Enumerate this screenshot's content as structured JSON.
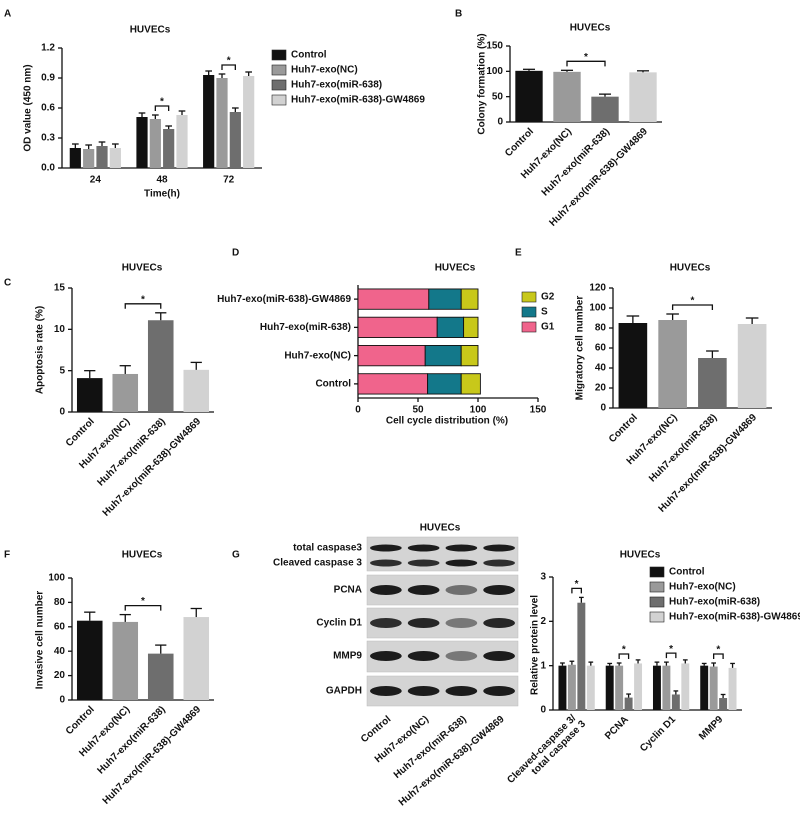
{
  "chart_data": [
    {
      "panel": "A",
      "type": "grouped_bar",
      "title": "HUVECs",
      "x_label": "Time(h)",
      "y_label": "OD value (450 nm)",
      "categories": [
        "24",
        "48",
        "72"
      ],
      "series": [
        {
          "name": "Control",
          "color": "#111111",
          "values": [
            0.2,
            0.51,
            0.93
          ],
          "errors": [
            0.04,
            0.04,
            0.04
          ]
        },
        {
          "name": "Huh7-exo(NC)",
          "color": "#9a9a9a",
          "values": [
            0.19,
            0.49,
            0.9
          ],
          "errors": [
            0.04,
            0.04,
            0.04
          ]
        },
        {
          "name": "Huh7-exo(miR-638)",
          "color": "#6e6e6e",
          "values": [
            0.22,
            0.39,
            0.56
          ],
          "errors": [
            0.04,
            0.03,
            0.04
          ]
        },
        {
          "name": "Huh7-exo(miR-638)-GW4869",
          "color": "#d2d2d2",
          "values": [
            0.2,
            0.53,
            0.92
          ],
          "errors": [
            0.04,
            0.04,
            0.04
          ]
        }
      ],
      "ylim": [
        0,
        1.2
      ],
      "yticks": [
        {
          "value": 0,
          "label": "0.0"
        },
        0.3,
        0.6,
        0.9,
        1.2
      ],
      "annotations": [
        {
          "text": "*",
          "category": "48",
          "between": [
            "Huh7-exo(NC)",
            "Huh7-exo(miR-638)"
          ]
        },
        {
          "text": "*",
          "category": "72",
          "between": [
            "Huh7-exo(NC)",
            "Huh7-exo(miR-638)"
          ]
        }
      ]
    },
    {
      "panel": "B",
      "type": "bar",
      "title": "HUVECs",
      "y_label": "Colony formation (%)",
      "categories": [
        "Control",
        "Huh7-exo(NC)",
        "Huh7-exo(miR-638)",
        "Huh7-exo(miR-638)-GW4869"
      ],
      "values": [
        101,
        99,
        50,
        98
      ],
      "errors": [
        3,
        3,
        5,
        3
      ],
      "colors": [
        "#111111",
        "#9a9a9a",
        "#6e6e6e",
        "#d2d2d2"
      ],
      "ylim": [
        0,
        150
      ],
      "yticks": [
        0,
        50,
        100,
        150
      ],
      "annotations": [
        {
          "text": "*",
          "between": [
            "Huh7-exo(NC)",
            "Huh7-exo(miR-638)"
          ]
        }
      ]
    },
    {
      "panel": "C",
      "type": "bar",
      "title": "HUVECs",
      "y_label": "Apoptosis rate (%)",
      "categories": [
        "Control",
        "Huh7-exo(NC)",
        "Huh7-exo(miR-638)",
        "Huh7-exo(miR-638)-GW4869"
      ],
      "values": [
        4.1,
        4.6,
        11.1,
        5.1
      ],
      "errors": [
        0.9,
        1.0,
        0.9,
        0.9
      ],
      "colors": [
        "#111111",
        "#9a9a9a",
        "#6e6e6e",
        "#d2d2d2"
      ],
      "ylim": [
        0,
        15
      ],
      "yticks": [
        0,
        5,
        10,
        15
      ],
      "annotations": [
        {
          "text": "*",
          "between": [
            "Huh7-exo(NC)",
            "Huh7-exo(miR-638)"
          ]
        }
      ]
    },
    {
      "panel": "D",
      "type": "stacked_barh",
      "title": "HUVECs",
      "x_label": "Cell cycle distribution (%)",
      "categories": [
        "Control",
        "Huh7-exo(NC)",
        "Huh7-exo(miR-638)",
        "Huh7-exo(miR-638)-GW4869"
      ],
      "series": [
        {
          "name": "G1",
          "color": "#f0648c",
          "values": [
            58,
            56,
            66,
            59
          ]
        },
        {
          "name": "S",
          "color": "#13788a",
          "values": [
            28,
            30,
            22,
            27
          ]
        },
        {
          "name": "G2",
          "color": "#c8c81a",
          "values": [
            16,
            14,
            12,
            14
          ]
        }
      ],
      "xlim": [
        0,
        150
      ],
      "xticks": [
        0,
        50,
        100,
        150
      ]
    },
    {
      "panel": "E",
      "type": "bar",
      "title": "HUVECs",
      "y_label": "Migratory cell number",
      "categories": [
        "Control",
        "Huh7-exo(NC)",
        "Huh7-exo(miR-638)",
        "Huh7-exo(miR-638)-GW4869"
      ],
      "values": [
        85,
        88,
        50,
        84
      ],
      "errors": [
        7,
        6,
        7,
        6
      ],
      "colors": [
        "#111111",
        "#9a9a9a",
        "#6e6e6e",
        "#d2d2d2"
      ],
      "ylim": [
        0,
        120
      ],
      "yticks": [
        0,
        20,
        40,
        60,
        80,
        100,
        120
      ],
      "annotations": [
        {
          "text": "*",
          "between": [
            "Huh7-exo(NC)",
            "Huh7-exo(miR-638)"
          ]
        }
      ]
    },
    {
      "panel": "F",
      "type": "bar",
      "title": "HUVECs",
      "y_label": "Invasive cell number",
      "categories": [
        "Control",
        "Huh7-exo(NC)",
        "Huh7-exo(miR-638)",
        "Huh7-exo(miR-638)-GW4869"
      ],
      "values": [
        65,
        64,
        38,
        68
      ],
      "errors": [
        7,
        6,
        7,
        7
      ],
      "colors": [
        "#111111",
        "#9a9a9a",
        "#6e6e6e",
        "#d2d2d2"
      ],
      "ylim": [
        0,
        100
      ],
      "yticks": [
        0,
        20,
        40,
        60,
        80,
        100
      ],
      "annotations": [
        {
          "text": "*",
          "between": [
            "Huh7-exo(NC)",
            "Huh7-exo(miR-638)"
          ]
        }
      ]
    },
    {
      "type": "grouped_bar",
      "title": "HUVECs",
      "y_label": "Relative protein level",
      "categories": [
        "Cleaved-caspase 3/ total caspase 3",
        "PCNA",
        "Cyclin D1",
        "MMP9"
      ],
      "series": [
        {
          "name": "Control",
          "color": "#111111",
          "values": [
            1.0,
            1.0,
            1.0,
            1.0
          ],
          "errors": [
            0.06,
            0.05,
            0.08,
            0.05
          ]
        },
        {
          "name": "Huh7-exo(NC)",
          "color": "#9a9a9a",
          "values": [
            1.02,
            1.0,
            1.0,
            0.98
          ],
          "errors": [
            0.08,
            0.06,
            0.08,
            0.08
          ]
        },
        {
          "name": "Huh7-exo(miR-638)",
          "color": "#6e6e6e",
          "values": [
            2.42,
            0.28,
            0.35,
            0.27
          ],
          "errors": [
            0.12,
            0.08,
            0.08,
            0.08
          ]
        },
        {
          "name": "Huh7-exo(miR-638)-GW4869",
          "color": "#d2d2d2",
          "values": [
            1.0,
            1.05,
            1.05,
            0.95
          ],
          "errors": [
            0.08,
            0.08,
            0.08,
            0.1
          ]
        }
      ],
      "ylim": [
        0,
        3
      ],
      "yticks": [
        0,
        1,
        2,
        3
      ],
      "annotations": [
        {
          "text": "*",
          "category": "Cleaved-caspase 3/ total caspase 3",
          "between": [
            "Huh7-exo(NC)",
            "Huh7-exo(miR-638)"
          ]
        },
        {
          "text": "*",
          "category": "PCNA",
          "between": [
            "Huh7-exo(NC)",
            "Huh7-exo(miR-638)"
          ]
        },
        {
          "text": "*",
          "category": "Cyclin D1",
          "between": [
            "Huh7-exo(NC)",
            "Huh7-exo(miR-638)"
          ]
        },
        {
          "text": "*",
          "category": "MMP9",
          "between": [
            "Huh7-exo(NC)",
            "Huh7-exo(miR-638)"
          ]
        }
      ]
    }
  ],
  "blot": {
    "panel": "G",
    "title": "HUVECs",
    "rows": [
      "total caspase3",
      "Cleaved caspase 3",
      "PCNA",
      "Cyclin D1",
      "MMP9",
      "GAPDH"
    ],
    "columns": [
      "Control",
      "Huh7-exo(NC)",
      "Huh7-exo(miR-638)",
      "Huh7-exo(miR-638)-GW4869"
    ]
  }
}
